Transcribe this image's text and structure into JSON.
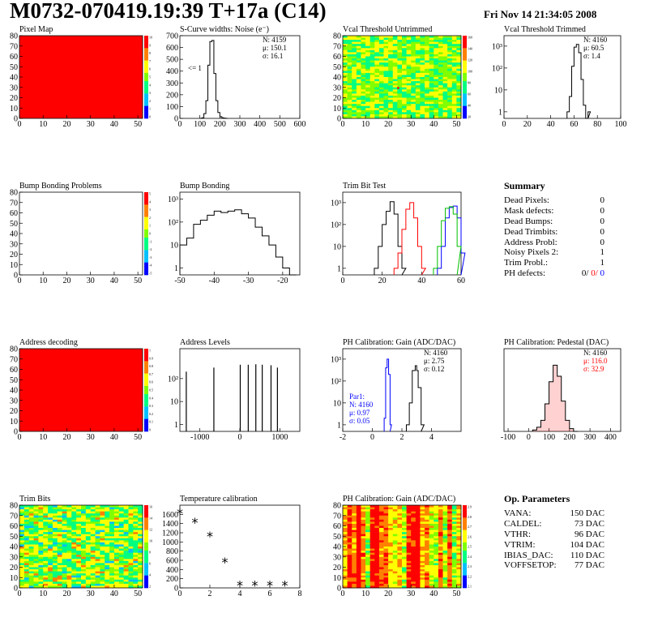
{
  "title": "M0732-070419.19:39 T+17a (C14)",
  "timestamp": "Fri Nov 14 21:34:05 2008",
  "colors": {
    "red": "#ff0000",
    "blue": "#0000ff",
    "green": "#00c000",
    "black": "#000000"
  },
  "panels": [
    {
      "title": "Pixel Map",
      "type": "heatmap",
      "fill": "uniform-red",
      "xlim": [
        0,
        52
      ],
      "ylim": [
        0,
        80
      ],
      "xticks": [
        "0",
        "10",
        "20",
        "30",
        "40",
        "50"
      ],
      "yticks": [
        "0",
        "10",
        "20",
        "30",
        "40",
        "50",
        "60",
        "70",
        "80"
      ],
      "zticks": [
        "10",
        "9",
        "8",
        "7",
        "6",
        "5",
        "4",
        "3",
        "2",
        "1",
        "0"
      ]
    },
    {
      "title": "S-Curve widths: Noise (e⁻)",
      "type": "histogram",
      "log": false,
      "xlim": [
        0,
        600
      ],
      "ylim": [
        0,
        700
      ],
      "xticks": [
        "0",
        "100",
        "200",
        "300",
        "400",
        "500",
        "600"
      ],
      "yticks": [
        "0",
        "100",
        "200",
        "300",
        "400",
        "500",
        "600",
        "700"
      ],
      "stats": [
        "N: 4159",
        "μ: 150.1",
        "σ: 16.1"
      ],
      "annotation": "<= 1",
      "series": [
        {
          "color": "black",
          "x": [
            100,
            110,
            120,
            130,
            140,
            150,
            160,
            170,
            180,
            190,
            200,
            210,
            220,
            230
          ],
          "y": [
            0,
            5,
            40,
            150,
            450,
            650,
            660,
            380,
            150,
            50,
            15,
            5,
            2,
            0
          ]
        }
      ]
    },
    {
      "title": "Vcal Threshold Untrimmed",
      "type": "heatmap",
      "fill": "noisy-green",
      "xlim": [
        0,
        52
      ],
      "ylim": [
        0,
        80
      ],
      "xticks": [
        "0",
        "10",
        "20",
        "30",
        "40",
        "50"
      ],
      "yticks": [
        "0",
        "10",
        "20",
        "30",
        "40",
        "50",
        "60",
        "70",
        "80"
      ],
      "zticks": [
        "160",
        "140",
        "120",
        "100",
        "80",
        "60",
        "40",
        "20"
      ]
    },
    {
      "title": "Vcal Threshold Trimmed",
      "type": "histogram",
      "log": true,
      "xlim": [
        0,
        100
      ],
      "ylim": [
        0.5,
        3000
      ],
      "xticks": [
        "0",
        "20",
        "40",
        "60",
        "80",
        "100"
      ],
      "yticks": [
        "1",
        "10",
        "10²",
        "10³"
      ],
      "stats": [
        "N: 4160",
        "μ: 60.5",
        "σ:  1.4"
      ],
      "series": [
        {
          "color": "black",
          "x": [
            54,
            56,
            58,
            60,
            62,
            64,
            66,
            68,
            70,
            72
          ],
          "y": [
            1,
            5,
            120,
            900,
            1200,
            500,
            30,
            2,
            0,
            1
          ]
        }
      ]
    },
    {
      "title": "Bump Bonding Problems",
      "type": "heatmap",
      "fill": "empty",
      "xlim": [
        0,
        52
      ],
      "ylim": [
        0,
        80
      ],
      "xticks": [
        "0",
        "10",
        "20",
        "30",
        "40",
        "50"
      ],
      "yticks": [
        "0",
        "10",
        "20",
        "30",
        "40",
        "50",
        "60",
        "70",
        "80"
      ],
      "zticks": [
        "5",
        "4",
        "3",
        "2",
        "1",
        "0",
        "-1",
        "-2",
        "-3",
        "-4",
        "-5"
      ]
    },
    {
      "title": "Bump Bonding",
      "type": "histogram",
      "log": true,
      "xlim": [
        -50,
        -15
      ],
      "ylim": [
        0.5,
        2000
      ],
      "xticks": [
        "-50",
        "-40",
        "-30",
        "-20"
      ],
      "yticks": [
        "1",
        "10",
        "10²",
        "10³"
      ],
      "series": [
        {
          "color": "black",
          "x": [
            -50,
            -48,
            -46,
            -44,
            -42,
            -40,
            -38,
            -36,
            -34,
            -32,
            -30,
            -28,
            -26,
            -24,
            -22,
            -20,
            -18
          ],
          "y": [
            10,
            20,
            80,
            120,
            200,
            300,
            260,
            300,
            340,
            230,
            150,
            60,
            25,
            10,
            3,
            1,
            0.5
          ]
        }
      ]
    },
    {
      "title": "Trim Bit Test",
      "type": "histogram",
      "log": true,
      "xlim": [
        0,
        60
      ],
      "ylim": [
        0.5,
        3000
      ],
      "xticks": [
        "0",
        "20",
        "40",
        "60"
      ],
      "yticks": [
        "1",
        "10",
        "10²",
        "10³"
      ],
      "series": [
        {
          "color": "black",
          "x": [
            16,
            18,
            20,
            22,
            24,
            26,
            28,
            30
          ],
          "y": [
            1,
            10,
            100,
            400,
            1100,
            300,
            10,
            1
          ]
        },
        {
          "color": "red",
          "x": [
            26,
            28,
            30,
            32,
            34,
            36,
            38,
            40
          ],
          "y": [
            1,
            5,
            60,
            500,
            1000,
            200,
            10,
            1
          ]
        },
        {
          "color": "blue",
          "x": [
            48,
            50,
            52,
            54,
            56,
            58,
            60
          ],
          "y": [
            1,
            10,
            200,
            600,
            700,
            200,
            5
          ]
        },
        {
          "color": "green",
          "x": [
            46,
            48,
            50,
            52,
            54,
            56,
            58
          ],
          "y": [
            1,
            10,
            150,
            550,
            650,
            300,
            10
          ]
        }
      ]
    },
    {
      "title": "Summary",
      "type": "summary",
      "rows": [
        {
          "label": "Dead Pixels:",
          "value": "0"
        },
        {
          "label": "Mask defects:",
          "value": "0"
        },
        {
          "label": "Dead Bumps:",
          "value": "0"
        },
        {
          "label": "Dead Trimbits:",
          "value": "0"
        },
        {
          "label": "Address Probl:",
          "value": "0"
        },
        {
          "label": "Noisy Pixels 2:",
          "value": "1"
        },
        {
          "label": "Trim Probl.:",
          "value": "1"
        },
        {
          "label": "PH defects:",
          "value": "0/",
          "value2": "0/",
          "value3": "0"
        }
      ]
    },
    {
      "title": "Address decoding",
      "type": "heatmap",
      "fill": "uniform-red",
      "xlim": [
        0,
        52
      ],
      "ylim": [
        0,
        80
      ],
      "xticks": [
        "0",
        "10",
        "20",
        "30",
        "40",
        "50"
      ],
      "yticks": [
        "0",
        "10",
        "20",
        "30",
        "40",
        "50",
        "60",
        "70",
        "80"
      ],
      "zticks": [
        "1",
        "0.9",
        "0.8",
        "0.7",
        "0.6",
        "0.5",
        "0.4",
        "0.3",
        "0.2",
        "0.1",
        "0"
      ]
    },
    {
      "title": "Address Levels",
      "type": "spikes",
      "log": true,
      "xlim": [
        -1500,
        1500
      ],
      "ylim": [
        0.5,
        2000
      ],
      "xticks": [
        "-1000",
        "0",
        "1000"
      ],
      "yticks": [
        "1",
        "10",
        "10²"
      ],
      "series": [
        {
          "color": "black",
          "x": [
            -1340,
            -650,
            10,
            210,
            400,
            560,
            780,
            940
          ],
          "y": [
            200,
            300,
            400,
            400,
            420,
            400,
            380,
            300
          ]
        }
      ]
    },
    {
      "title": "PH Calibration: Gain (ADC/DAC)",
      "type": "histogram",
      "log": true,
      "xlim": [
        -2,
        6
      ],
      "ylim": [
        0.5,
        3000
      ],
      "xticks": [
        "-2",
        "0",
        "2",
        "4"
      ],
      "yticks": [
        "1",
        "10",
        "10²",
        "10³"
      ],
      "stats": [
        "N: 4160",
        "μ: 2.75",
        "σ: 0.12"
      ],
      "stats2": [
        "Par1:",
        "N: 4160",
        "μ: 0.97",
        "σ: 0.05"
      ],
      "series": [
        {
          "color": "blue",
          "x": [
            0.8,
            0.9,
            1.0,
            1.1,
            1.2
          ],
          "y": [
            2,
            400,
            1000,
            200,
            1
          ]
        },
        {
          "color": "black",
          "x": [
            2.3,
            2.5,
            2.7,
            2.9,
            3.0,
            3.1,
            3.3
          ],
          "y": [
            1,
            10,
            300,
            500,
            300,
            50,
            1
          ]
        }
      ]
    },
    {
      "title": "PH Calibration: Pedestal (DAC)",
      "type": "histogram",
      "log": false,
      "xlim": [
        -120,
        450
      ],
      "ylim": [
        0,
        60
      ],
      "xticks": [
        "-100",
        "0",
        "100",
        "200",
        "300",
        "400"
      ],
      "yticks": [],
      "stats": [
        "N: 4160"
      ],
      "stats_red": [
        "μ: 116.0",
        "σ: 32.9"
      ],
      "series": [
        {
          "color": "black",
          "x": [
            20,
            40,
            60,
            80,
            100,
            120,
            140,
            160,
            180,
            200,
            220
          ],
          "y": [
            1,
            3,
            8,
            20,
            36,
            48,
            40,
            22,
            8,
            2,
            0
          ]
        }
      ]
    },
    {
      "title": "Trim Bits",
      "type": "heatmap",
      "fill": "noisy-green2",
      "xlim": [
        0,
        52
      ],
      "ylim": [
        0,
        80
      ],
      "xticks": [
        "0",
        "10",
        "20",
        "30",
        "40",
        "50"
      ],
      "yticks": [
        "0",
        "10",
        "20",
        "30",
        "40",
        "50",
        "60",
        "70",
        "80"
      ],
      "zticks": [
        "16",
        "14",
        "12",
        "10",
        "8",
        "6",
        "4",
        "2"
      ]
    },
    {
      "title": "Temperature calibration",
      "type": "scatter",
      "log": false,
      "xlim": [
        0,
        8
      ],
      "ylim": [
        0,
        1800
      ],
      "xticks": [
        "0",
        "2",
        "4",
        "6",
        "8"
      ],
      "yticks": [
        "0",
        "200",
        "400",
        "600",
        "800",
        "1000",
        "1200",
        "1400",
        "1600"
      ],
      "series": [
        {
          "color": "black",
          "x": [
            0,
            1,
            2,
            3,
            4,
            5,
            6,
            7
          ],
          "y": [
            1650,
            1450,
            1150,
            580,
            80,
            80,
            80,
            80
          ]
        }
      ]
    },
    {
      "title": "PH Calibration: Gain (ADC/DAC)",
      "type": "heatmap",
      "fill": "striped",
      "xlim": [
        0,
        52
      ],
      "ylim": [
        0,
        80
      ],
      "xticks": [
        "0",
        "10",
        "20",
        "30",
        "40",
        "50"
      ],
      "yticks": [
        "0",
        "10",
        "20",
        "30",
        "40",
        "50",
        "60",
        "70",
        "80"
      ],
      "zticks": [
        "2.9",
        "2.8",
        "2.7",
        "2.6",
        "2.5",
        "2.4",
        "2.3",
        "2.2",
        "2.1"
      ]
    },
    {
      "title": "Op. Parameters",
      "type": "summary",
      "rows": [
        {
          "label": "VANA:",
          "value": "150 DAC"
        },
        {
          "label": "CALDEL:",
          "value": "73 DAC"
        },
        {
          "label": "VTHR:",
          "value": "96 DAC"
        },
        {
          "label": "VTRIM:",
          "value": "104 DAC"
        },
        {
          "label": "IBIAS_DAC:",
          "value": "110 DAC"
        },
        {
          "label": "VOFFSETOP:",
          "value": "77 DAC"
        }
      ]
    }
  ]
}
